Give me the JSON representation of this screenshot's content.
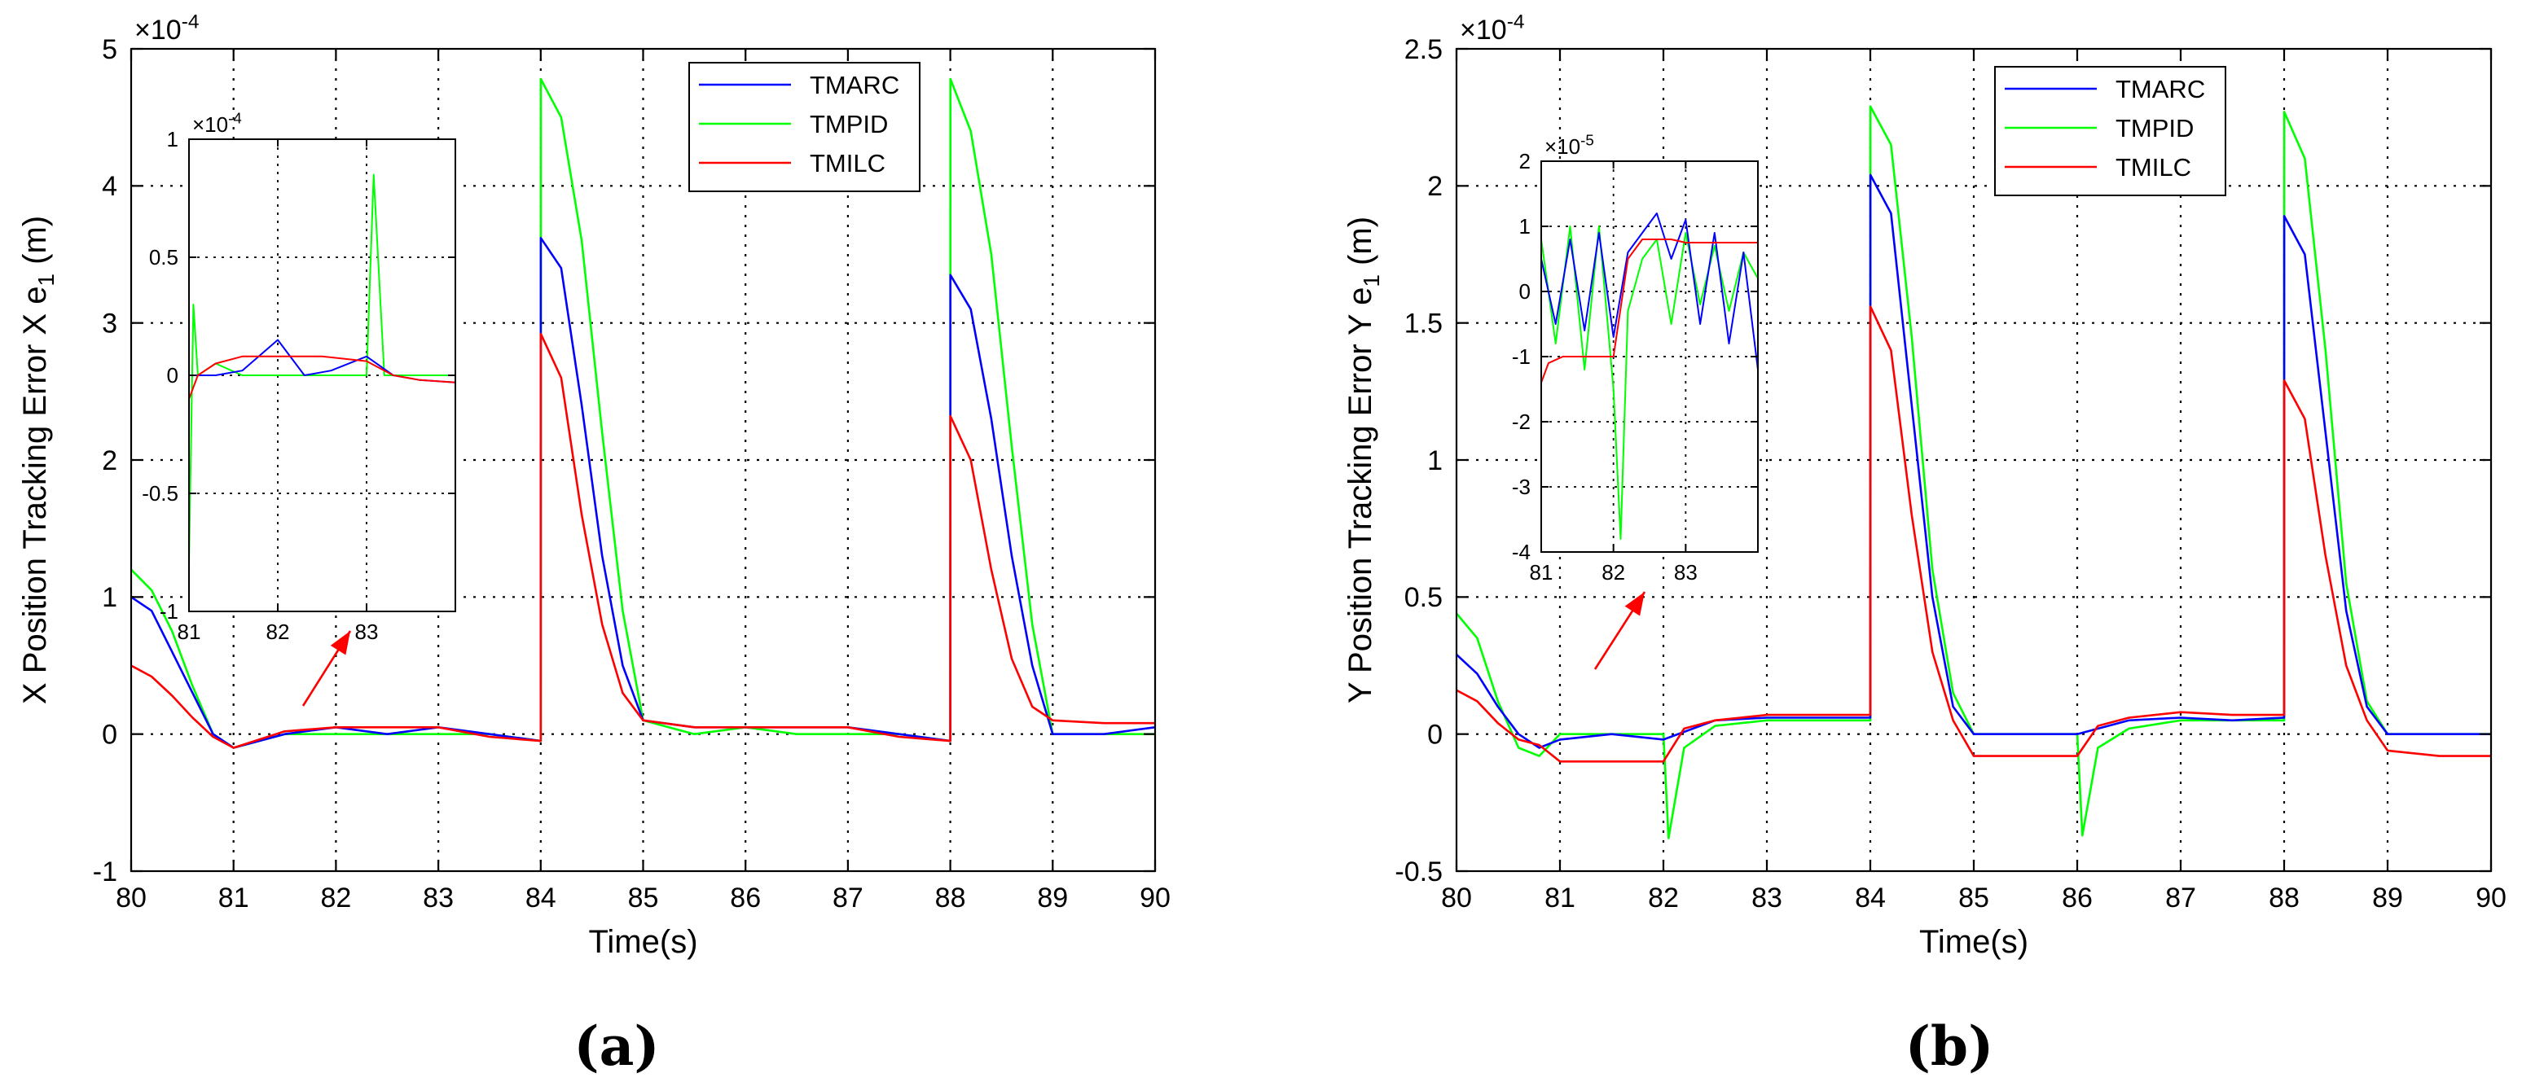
{
  "figure": {
    "panels": [
      "(a)",
      "(b)"
    ]
  },
  "legend_entries": [
    "TMARC",
    "TMPID",
    "TMILC"
  ],
  "series_colors": {
    "TMARC": "#0000ff",
    "TMPID": "#00ff00",
    "TMILC": "#ff0000"
  },
  "chart_data": [
    {
      "type": "line",
      "title": "",
      "panel": "(a)",
      "xlabel": "Time(s)",
      "ylabel": "X Position Tracking Error X e1 (m)",
      "ylabel_main": "X Position Tracking Error X e",
      "ylabel_sub": "1",
      "ylabel_unit": " (m)",
      "exponent_label": "×10",
      "exponent_power": "-4",
      "xlim": [
        80,
        90
      ],
      "ylim": [
        -1,
        5
      ],
      "xticks": [
        "80",
        "81",
        "82",
        "83",
        "84",
        "85",
        "86",
        "87",
        "88",
        "89",
        "90"
      ],
      "yticks": [
        "-1",
        "0",
        "1",
        "2",
        "3",
        "4",
        "5"
      ],
      "grid": true,
      "legend_position": "top-right",
      "series": [
        {
          "name": "TMARC",
          "x": [
            80,
            80.2,
            80.4,
            80.6,
            80.8,
            81,
            81.5,
            82,
            82.5,
            83,
            83.5,
            84,
            84.001,
            84.2,
            84.4,
            84.6,
            84.8,
            85,
            85.5,
            86,
            86.5,
            87,
            87.5,
            88,
            88.001,
            88.2,
            88.4,
            88.6,
            88.8,
            89,
            89.5,
            90
          ],
          "values": [
            1.0,
            0.9,
            0.6,
            0.3,
            0.0,
            -0.1,
            0.0,
            0.05,
            0.0,
            0.05,
            0.0,
            -0.05,
            3.62,
            3.4,
            2.4,
            1.3,
            0.5,
            0.1,
            0.05,
            0.05,
            0.05,
            0.05,
            0.0,
            -0.05,
            3.35,
            3.1,
            2.3,
            1.3,
            0.5,
            0.0,
            0.0,
            0.05
          ]
        },
        {
          "name": "TMPID",
          "x": [
            80,
            80.2,
            80.4,
            80.6,
            80.8,
            81,
            81.5,
            82,
            82.5,
            83,
            83.5,
            84,
            84.001,
            84.2,
            84.4,
            84.6,
            84.8,
            85,
            85.5,
            86,
            86.5,
            87,
            87.5,
            88,
            88.001,
            88.2,
            88.4,
            88.6,
            88.8,
            89,
            89.5,
            90
          ],
          "values": [
            1.2,
            1.05,
            0.75,
            0.35,
            0.0,
            -0.1,
            0.0,
            0.0,
            0.0,
            0.0,
            0.0,
            -0.05,
            4.78,
            4.5,
            3.6,
            2.2,
            0.9,
            0.1,
            0.0,
            0.05,
            0.0,
            0.0,
            0.0,
            -0.05,
            4.78,
            4.4,
            3.5,
            2.1,
            0.8,
            0.0,
            0.0,
            0.0
          ]
        },
        {
          "name": "TMILC",
          "x": [
            80,
            80.2,
            80.4,
            80.6,
            80.8,
            81,
            81.5,
            82,
            82.5,
            83,
            83.5,
            84,
            84.001,
            84.2,
            84.4,
            84.6,
            84.8,
            85,
            85.5,
            86,
            86.5,
            87,
            87.5,
            88,
            88.001,
            88.2,
            88.4,
            88.6,
            88.8,
            89,
            89.5,
            90
          ],
          "values": [
            0.5,
            0.42,
            0.28,
            0.12,
            -0.02,
            -0.1,
            0.02,
            0.05,
            0.05,
            0.05,
            -0.02,
            -0.05,
            2.92,
            2.6,
            1.6,
            0.8,
            0.3,
            0.1,
            0.05,
            0.05,
            0.05,
            0.05,
            -0.02,
            -0.05,
            2.32,
            2.0,
            1.2,
            0.55,
            0.2,
            0.1,
            0.08,
            0.08
          ]
        }
      ],
      "inset": {
        "xlim": [
          81,
          84
        ],
        "ylim": [
          -1,
          1
        ],
        "xticks": [
          "81",
          "82",
          "83"
        ],
        "yticks": [
          "-1",
          "-0.5",
          "0",
          "0.5",
          "1"
        ],
        "exponent_label": "×10",
        "exponent_power": "-4",
        "series": [
          {
            "name": "TMARC",
            "x": [
              81,
              81.3,
              81.6,
              82,
              82.3,
              82.6,
              83,
              83.3,
              83.6,
              84
            ],
            "values": [
              0.0,
              0.0,
              0.02,
              0.15,
              0.0,
              0.02,
              0.08,
              0.0,
              -0.02,
              -0.03
            ]
          },
          {
            "name": "TMPID",
            "x": [
              81,
              81.05,
              81.1,
              81.3,
              81.6,
              82,
              82.3,
              83,
              83.08,
              83.2,
              83.6,
              84
            ],
            "values": [
              -0.8,
              0.3,
              0.0,
              0.05,
              0.0,
              0.0,
              0.0,
              0.0,
              0.85,
              0.0,
              0.0,
              0.0
            ]
          },
          {
            "name": "TMILC",
            "x": [
              81,
              81.1,
              81.3,
              81.6,
              82,
              82.5,
              83,
              83.3,
              83.6,
              84
            ],
            "values": [
              -0.1,
              0.0,
              0.05,
              0.08,
              0.08,
              0.08,
              0.06,
              0.0,
              -0.02,
              -0.03
            ]
          }
        ]
      }
    },
    {
      "type": "line",
      "title": "",
      "panel": "(b)",
      "xlabel": "Time(s)",
      "ylabel": "Y Position Tracking Error Y e1 (m)",
      "ylabel_main": "Y Position Tracking Error Y e",
      "ylabel_sub": "1",
      "ylabel_unit": " (m)",
      "exponent_label": "×10",
      "exponent_power": "-4",
      "xlim": [
        80,
        90
      ],
      "ylim": [
        -0.5,
        2.5
      ],
      "xticks": [
        "80",
        "81",
        "82",
        "83",
        "84",
        "85",
        "86",
        "87",
        "88",
        "89",
        "90"
      ],
      "yticks": [
        "-0.5",
        "0",
        "0.5",
        "1",
        "1.5",
        "2",
        "2.5"
      ],
      "grid": true,
      "legend_position": "top-right",
      "series": [
        {
          "name": "TMARC",
          "x": [
            80,
            80.2,
            80.4,
            80.6,
            80.8,
            81,
            81.5,
            82,
            82.5,
            83,
            83.5,
            84,
            84.001,
            84.2,
            84.4,
            84.6,
            84.8,
            85,
            85.5,
            86,
            86.5,
            87,
            87.5,
            88,
            88.001,
            88.2,
            88.4,
            88.6,
            88.8,
            89,
            89.5,
            90
          ],
          "values": [
            0.29,
            0.22,
            0.1,
            0.0,
            -0.05,
            -0.02,
            0.0,
            -0.02,
            0.05,
            0.06,
            0.06,
            0.06,
            2.04,
            1.9,
            1.2,
            0.5,
            0.1,
            0.0,
            0.0,
            0.0,
            0.05,
            0.06,
            0.05,
            0.06,
            1.89,
            1.75,
            1.1,
            0.45,
            0.1,
            0.0,
            0.0,
            0.0
          ]
        },
        {
          "name": "TMPID",
          "x": [
            80,
            80.2,
            80.4,
            80.6,
            80.8,
            81,
            81.5,
            82,
            82.05,
            82.2,
            82.5,
            83,
            83.5,
            84,
            84.001,
            84.2,
            84.4,
            84.6,
            84.8,
            85,
            85.5,
            86,
            86.05,
            86.2,
            86.5,
            87,
            87.5,
            88,
            88.001,
            88.2,
            88.4,
            88.6,
            88.8,
            89,
            89.5,
            90
          ],
          "values": [
            0.44,
            0.35,
            0.12,
            -0.05,
            -0.08,
            0.0,
            0.0,
            0.0,
            -0.38,
            -0.05,
            0.03,
            0.05,
            0.05,
            0.05,
            2.29,
            2.15,
            1.45,
            0.6,
            0.15,
            0.0,
            0.0,
            0.0,
            -0.37,
            -0.05,
            0.02,
            0.05,
            0.05,
            0.05,
            2.27,
            2.1,
            1.4,
            0.55,
            0.12,
            0.0,
            0.0,
            0.0
          ]
        },
        {
          "name": "TMILC",
          "x": [
            80,
            80.2,
            80.4,
            80.6,
            80.8,
            81,
            81.5,
            82,
            82.2,
            82.5,
            83,
            83.5,
            84,
            84.001,
            84.2,
            84.4,
            84.6,
            84.8,
            85,
            85.5,
            86,
            86.2,
            86.5,
            87,
            87.5,
            88,
            88.001,
            88.2,
            88.4,
            88.6,
            88.8,
            89,
            89.5,
            90
          ],
          "values": [
            0.16,
            0.12,
            0.04,
            -0.02,
            -0.04,
            -0.1,
            -0.1,
            -0.1,
            0.02,
            0.05,
            0.07,
            0.07,
            0.07,
            1.56,
            1.4,
            0.8,
            0.3,
            0.05,
            -0.08,
            -0.08,
            -0.08,
            0.03,
            0.06,
            0.08,
            0.07,
            0.07,
            1.29,
            1.15,
            0.65,
            0.25,
            0.05,
            -0.06,
            -0.08,
            -0.08
          ]
        }
      ],
      "inset": {
        "xlim": [
          81,
          84
        ],
        "ylim": [
          -4,
          2
        ],
        "xticks": [
          "81",
          "82",
          "83"
        ],
        "yticks": [
          "-4",
          "-3",
          "-2",
          "-1",
          "0",
          "1",
          "2"
        ],
        "exponent_label": "×10",
        "exponent_power": "-5",
        "series": [
          {
            "name": "TMARC",
            "x": [
              81,
              81.2,
              81.4,
              81.6,
              81.8,
              82,
              82.2,
              82.4,
              82.6,
              82.8,
              83,
              83.2,
              83.4,
              83.6,
              83.8,
              84
            ],
            "values": [
              0.5,
              -0.5,
              0.8,
              -0.6,
              0.9,
              -0.7,
              0.6,
              0.9,
              1.2,
              0.5,
              1.1,
              -0.5,
              0.9,
              -0.8,
              0.6,
              -1.2
            ]
          },
          {
            "name": "TMPID",
            "x": [
              81,
              81.2,
              81.4,
              81.6,
              81.8,
              82,
              82.1,
              82.2,
              82.4,
              82.6,
              82.8,
              83,
              83.2,
              83.4,
              83.6,
              83.8,
              84
            ],
            "values": [
              0.8,
              -0.8,
              1.0,
              -1.2,
              1.0,
              -1.5,
              -3.8,
              -0.3,
              0.5,
              0.8,
              -0.5,
              0.9,
              -0.2,
              0.7,
              -0.3,
              0.6,
              0.2
            ]
          },
          {
            "name": "TMILC",
            "x": [
              81,
              81.1,
              81.3,
              81.6,
              82,
              82.2,
              82.4,
              82.8,
              83,
              83.4,
              83.8,
              84
            ],
            "values": [
              -1.4,
              -1.1,
              -1.0,
              -1.0,
              -1.0,
              0.5,
              0.8,
              0.8,
              0.75,
              0.75,
              0.75,
              0.75
            ]
          }
        ]
      }
    }
  ]
}
